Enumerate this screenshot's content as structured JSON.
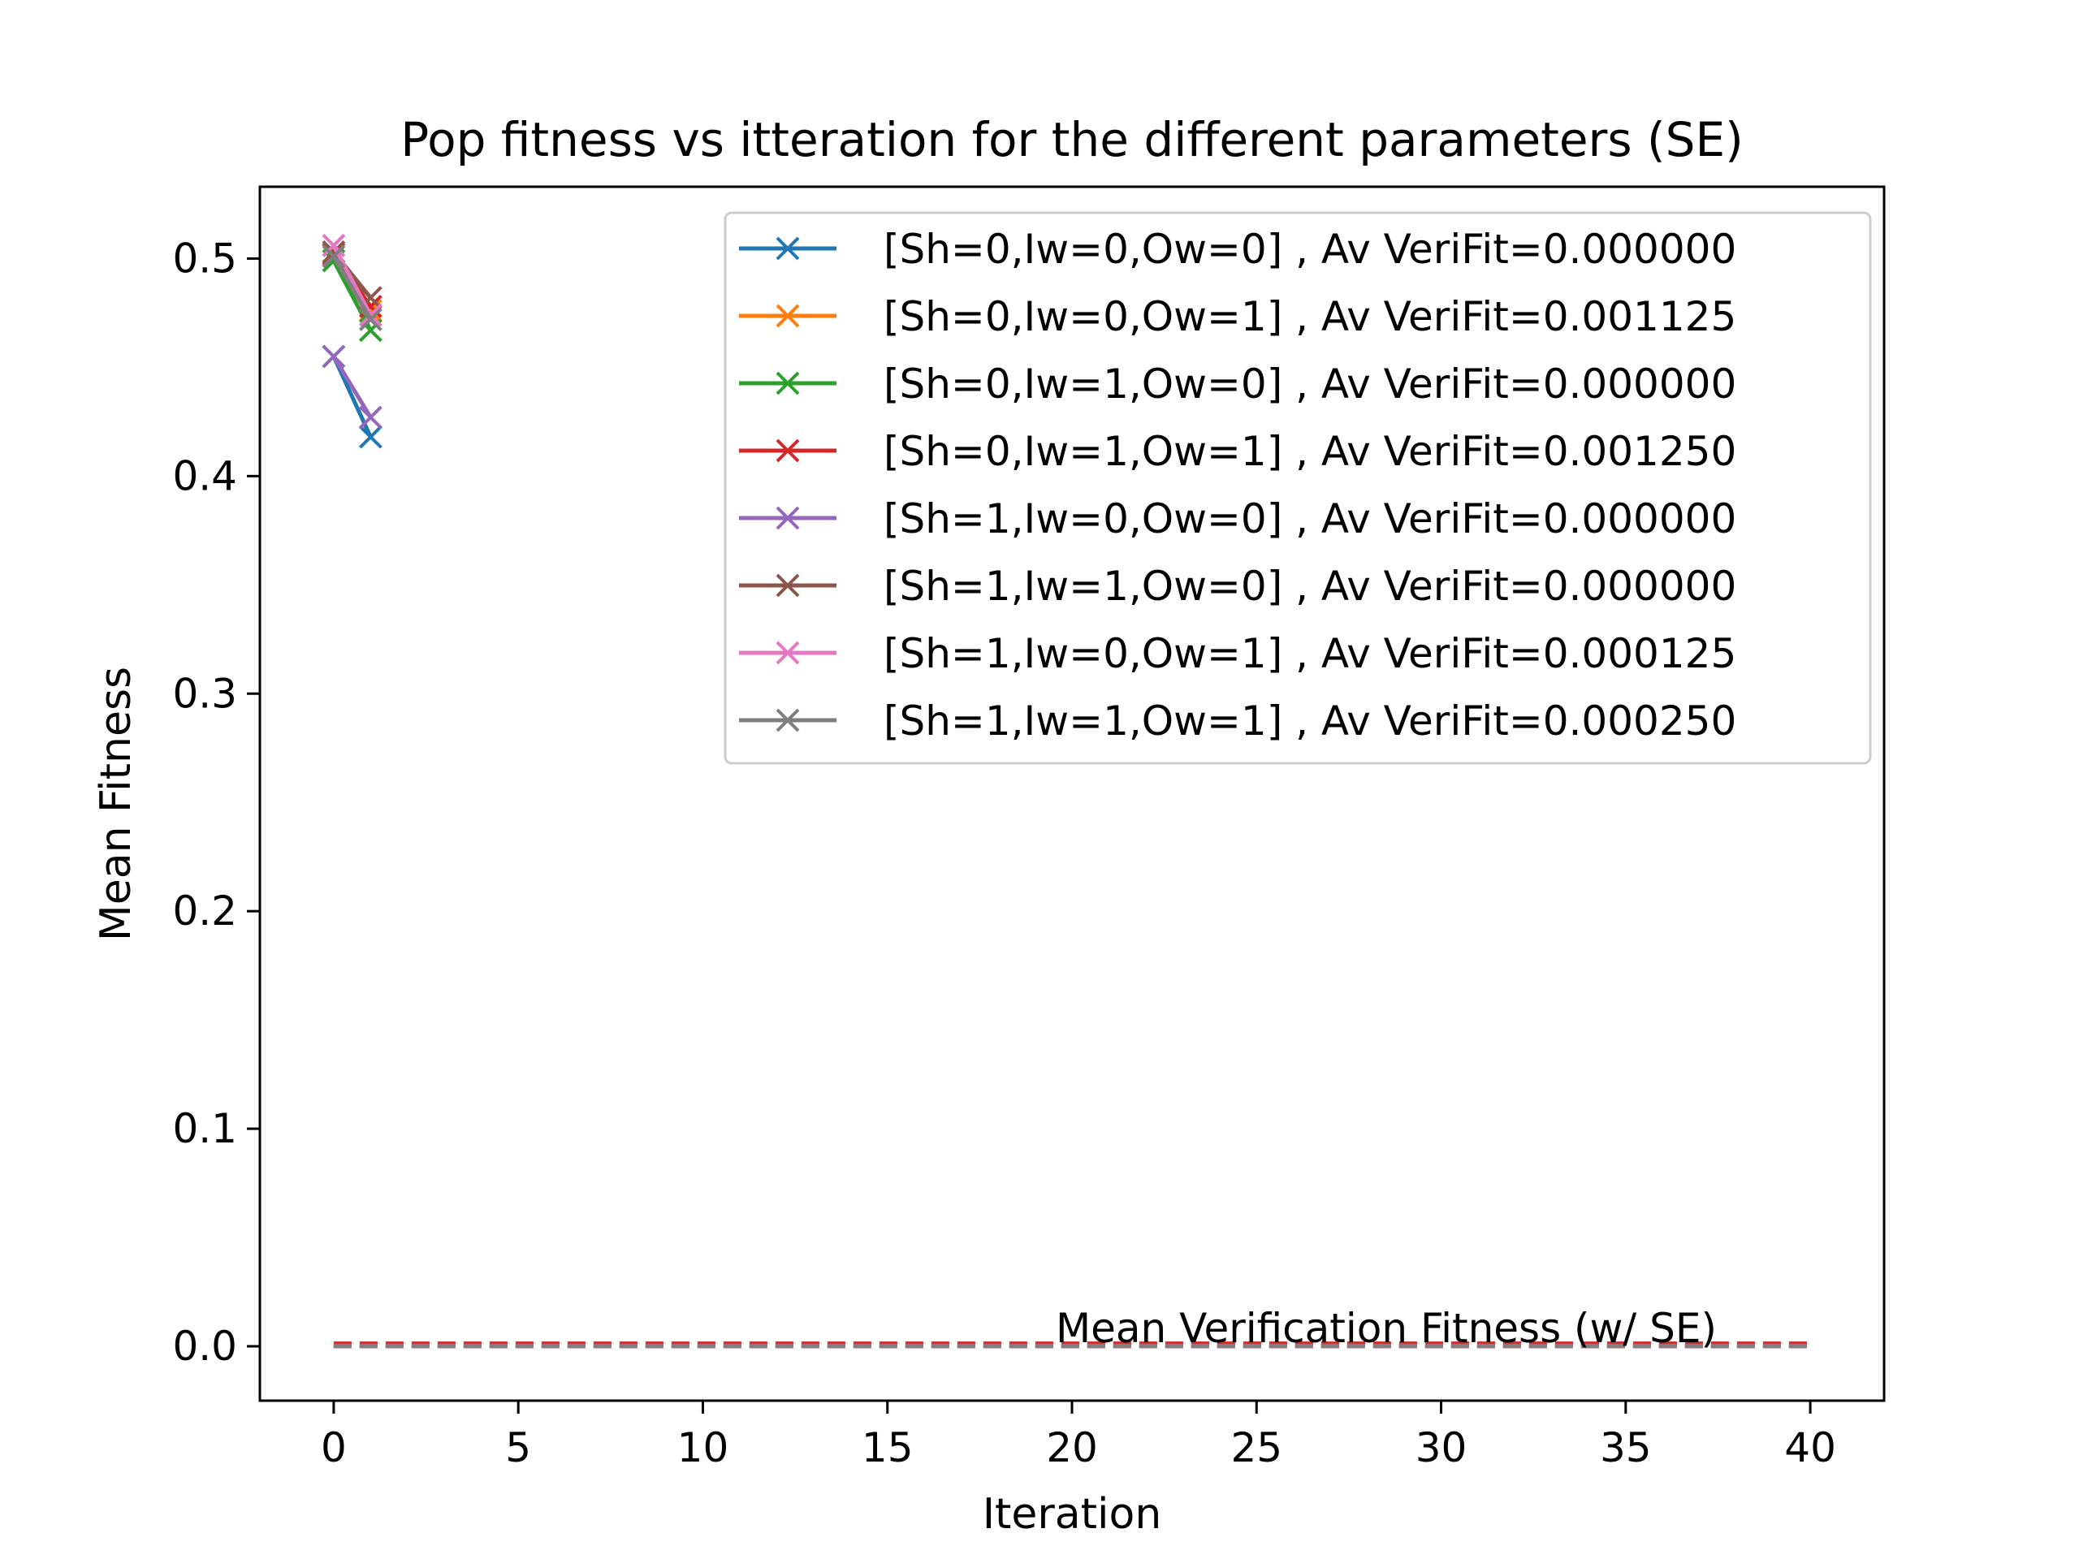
{
  "chart_data": {
    "type": "line",
    "title": "Pop fitness vs itteration for the different parameters (SE)",
    "xlabel": "Iteration",
    "ylabel": "Mean Fitness",
    "xlim": [
      -2,
      42
    ],
    "ylim": [
      -0.025,
      0.533
    ],
    "xticks": [
      0,
      5,
      10,
      15,
      20,
      25,
      30,
      35,
      40
    ],
    "yticks": [
      0.0,
      0.1,
      0.2,
      0.3,
      0.4,
      0.5
    ],
    "xtick_labels": [
      "0",
      "5",
      "10",
      "15",
      "20",
      "25",
      "30",
      "35",
      "40"
    ],
    "ytick_labels": [
      "0.0",
      "0.1",
      "0.2",
      "0.3",
      "0.4",
      "0.5"
    ],
    "grid": false,
    "legend_position": "upper-right",
    "series": [
      {
        "name": "[Sh=0,Iw=0,Ow=0] , Av VeriFit=0.000000",
        "color": "#1f77b4",
        "x": [
          0,
          1
        ],
        "y": [
          0.455,
          0.418
        ],
        "verification_mean": 0.0
      },
      {
        "name": "[Sh=0,Iw=0,Ow=1] , Av VeriFit=0.001125",
        "color": "#ff7f0e",
        "x": [
          0,
          1
        ],
        "y": [
          0.503,
          0.476
        ],
        "verification_mean": 0.001125
      },
      {
        "name": "[Sh=0,Iw=1,Ow=0] , Av VeriFit=0.000000",
        "color": "#2ca02c",
        "x": [
          0,
          1
        ],
        "y": [
          0.499,
          0.467
        ],
        "verification_mean": 0.0
      },
      {
        "name": "[Sh=0,Iw=1,Ow=1] , Av VeriFit=0.001250",
        "color": "#d62728",
        "x": [
          0,
          1
        ],
        "y": [
          0.502,
          0.478
        ],
        "verification_mean": 0.00125
      },
      {
        "name": "[Sh=1,Iw=0,Ow=0] , Av VeriFit=0.000000",
        "color": "#9467bd",
        "x": [
          0,
          1
        ],
        "y": [
          0.455,
          0.427
        ],
        "verification_mean": 0.0
      },
      {
        "name": "[Sh=1,Iw=1,Ow=0] , Av VeriFit=0.000000",
        "color": "#8c564b",
        "x": [
          0,
          1
        ],
        "y": [
          0.503,
          0.482
        ],
        "verification_mean": 0.0
      },
      {
        "name": "[Sh=1,Iw=0,Ow=1] , Av VeriFit=0.000125",
        "color": "#e377c2",
        "x": [
          0,
          1
        ],
        "y": [
          0.506,
          0.474
        ],
        "verification_mean": 0.000125
      },
      {
        "name": "[Sh=1,Iw=1,Ow=1] , Av VeriFit=0.000250",
        "color": "#7f7f7f",
        "x": [
          0,
          1
        ],
        "y": [
          0.501,
          0.472
        ],
        "verification_mean": 0.00025
      }
    ],
    "verification_lines": {
      "x_range": [
        0,
        40
      ],
      "style": "dashed"
    },
    "annotation": "Mean Verification Fitness (w/ SE)"
  }
}
